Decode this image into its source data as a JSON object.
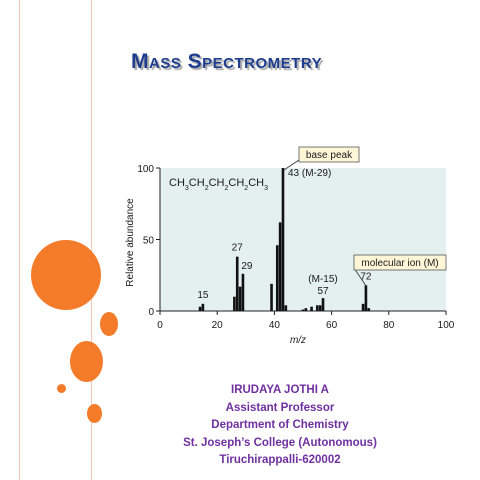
{
  "slide": {
    "title": "Mass Spectrometry",
    "author": {
      "name": "IRUDAYA JOTHI A",
      "position": "Assistant Professor",
      "department": "Department of Chemistry",
      "college": "St. Joseph’s College (Autonomous)",
      "city": "Tiruchirappalli-620002"
    },
    "colors": {
      "accent_orange": "#f47b2a",
      "rail_line": "#f0c6b8",
      "title": "#1f3d8f",
      "credits": "#7030a0",
      "plot_background": "#e3f0ee",
      "callout_box": "#fff6d8"
    }
  },
  "chart_data": {
    "type": "bar",
    "title": "",
    "xlabel": "m/z",
    "ylabel": "Relative abundance",
    "xlim": [
      0,
      100
    ],
    "ylim": [
      0,
      100
    ],
    "x_ticks": [
      0,
      20,
      40,
      60,
      80,
      100
    ],
    "y_ticks": [
      0,
      50,
      100
    ],
    "grid": false,
    "molecule_formula": "CH3CH2CH2CH2CH3",
    "peaks": [
      {
        "x": 14,
        "y": 3
      },
      {
        "x": 15,
        "y": 5
      },
      {
        "x": 26,
        "y": 10
      },
      {
        "x": 27,
        "y": 38
      },
      {
        "x": 28,
        "y": 17
      },
      {
        "x": 29,
        "y": 26
      },
      {
        "x": 39,
        "y": 19
      },
      {
        "x": 41,
        "y": 46
      },
      {
        "x": 42,
        "y": 62
      },
      {
        "x": 43,
        "y": 100
      },
      {
        "x": 44,
        "y": 4
      },
      {
        "x": 50,
        "y": 1
      },
      {
        "x": 51,
        "y": 2
      },
      {
        "x": 53,
        "y": 3
      },
      {
        "x": 55,
        "y": 4
      },
      {
        "x": 56,
        "y": 4
      },
      {
        "x": 57,
        "y": 9
      },
      {
        "x": 71,
        "y": 5
      },
      {
        "x": 72,
        "y": 18
      },
      {
        "x": 73,
        "y": 2
      }
    ],
    "peak_labels": [
      {
        "x": 15,
        "text": "15"
      },
      {
        "x": 27,
        "text": "27"
      },
      {
        "x": 29,
        "text": "29"
      },
      {
        "x": 43,
        "text": "43 (M-29)"
      },
      {
        "x": 57,
        "text": "(M-15)"
      },
      {
        "x": 57,
        "text": "57"
      },
      {
        "x": 72,
        "text": "72"
      }
    ],
    "annotations": [
      {
        "text": "base peak",
        "points_to_x": 43
      },
      {
        "text": "molecular ion (M)",
        "points_to_x": 72
      }
    ]
  }
}
